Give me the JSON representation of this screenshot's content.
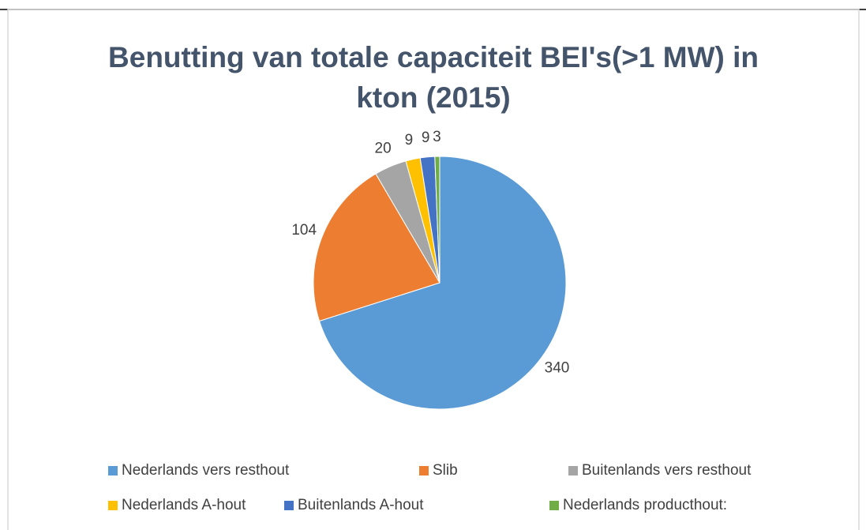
{
  "chart_data": {
    "type": "pie",
    "title": [
      "Benutting van totale capaciteit BEI's(>1 MW) in",
      "kton (2015)"
    ],
    "categories": [
      "Nederlands vers resthout",
      "Slib",
      "Buitenlands vers resthout",
      "Nederlands A-hout",
      "Buitenlands A-hout",
      "Nederlands producthout:"
    ],
    "values": [
      340,
      104,
      20,
      9,
      9,
      3
    ],
    "colors": [
      "#5b9bd5",
      "#ed7d31",
      "#a5a5a5",
      "#ffc000",
      "#4472c4",
      "#70ad47"
    ],
    "legend": "bottom"
  }
}
